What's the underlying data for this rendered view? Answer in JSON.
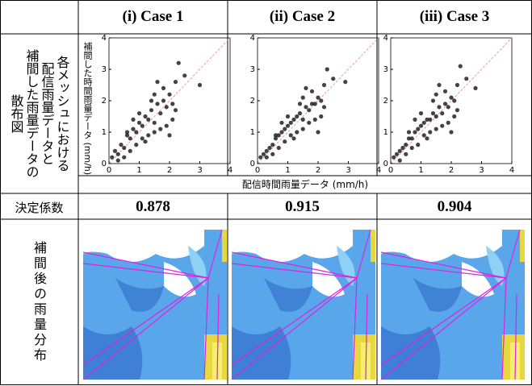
{
  "table": {
    "header": [
      "(i) Case 1",
      "(ii) Case 2",
      "(iii) Case 3"
    ],
    "scatter_row_label": [
      "各メッシュにおける",
      "配信雨量データと",
      "補間した雨量データの",
      "散布図"
    ],
    "r2_row_label": "決定係数",
    "r2_values": [
      0.878,
      0.915,
      0.904
    ],
    "map_row_label": "補間後の雨量分布",
    "x_axis_label": "配信時間雨量データ (mm/h)",
    "y_axis_label": "補間した時間雨量データ (mm/h)"
  },
  "chart_data": [
    {
      "type": "scatter",
      "color": "#222222",
      "xlim": [
        0,
        4
      ],
      "ylim": [
        0,
        4
      ],
      "xticks": [
        0,
        1,
        2,
        3,
        4
      ],
      "yticks": [
        0,
        1,
        2,
        3,
        4
      ],
      "x": [
        0.1,
        0.2,
        0.3,
        0.4,
        0.5,
        0.6,
        0.7,
        0.8,
        0.9,
        1.0,
        1.1,
        1.2,
        1.3,
        1.4,
        1.5,
        1.6,
        1.7,
        1.8,
        1.9,
        2.0,
        2.1,
        2.2,
        0.3,
        0.5,
        0.7,
        0.9,
        1.1,
        1.3,
        1.5,
        1.7,
        1.9,
        2.1,
        0.6,
        1.0,
        1.4,
        1.8,
        2.2,
        2.3,
        1.2,
        1.6,
        2.0,
        0.8,
        1.5,
        2.5,
        3.0
      ],
      "y": [
        0.2,
        0.4,
        0.3,
        0.6,
        0.5,
        0.9,
        0.8,
        1.1,
        1.0,
        1.3,
        1.2,
        1.5,
        1.4,
        1.7,
        1.3,
        1.9,
        1.6,
        2.0,
        1.8,
        2.2,
        1.9,
        1.7,
        0.1,
        0.2,
        0.4,
        0.6,
        0.8,
        0.9,
        1.0,
        1.1,
        1.2,
        1.4,
        1.0,
        1.6,
        2.0,
        2.4,
        2.6,
        3.2,
        0.7,
        2.6,
        0.9,
        1.4,
        2.2,
        2.8,
        2.5
      ]
    },
    {
      "type": "scatter",
      "color": "#222222",
      "xlim": [
        0,
        4
      ],
      "ylim": [
        0,
        4
      ],
      "xticks": [
        0,
        1,
        2,
        3,
        4
      ],
      "yticks": [
        0,
        1,
        2,
        3,
        4
      ],
      "x": [
        0.1,
        0.2,
        0.3,
        0.4,
        0.5,
        0.6,
        0.7,
        0.8,
        0.9,
        1.0,
        1.1,
        1.2,
        1.3,
        1.4,
        1.5,
        1.6,
        1.7,
        1.8,
        1.9,
        2.0,
        2.1,
        2.2,
        0.3,
        0.5,
        0.7,
        0.9,
        1.1,
        1.3,
        1.5,
        1.7,
        1.9,
        2.1,
        0.6,
        1.0,
        1.4,
        1.8,
        2.2,
        2.3,
        1.2,
        1.6,
        2.0,
        0.8,
        1.5,
        2.5,
        2.9
      ],
      "y": [
        0.2,
        0.3,
        0.4,
        0.5,
        0.6,
        0.8,
        0.9,
        1.0,
        1.1,
        1.2,
        1.3,
        1.4,
        1.5,
        1.6,
        1.4,
        1.8,
        1.7,
        1.9,
        1.9,
        2.1,
        2.0,
        1.8,
        0.2,
        0.3,
        0.5,
        0.7,
        0.9,
        1.0,
        1.1,
        1.3,
        1.4,
        1.5,
        0.9,
        1.5,
        1.9,
        2.3,
        2.5,
        3.0,
        0.8,
        2.4,
        1.0,
        1.3,
        2.1,
        2.7,
        2.6
      ]
    },
    {
      "type": "scatter",
      "color": "#222222",
      "xlim": [
        0,
        4
      ],
      "ylim": [
        0,
        4
      ],
      "xticks": [
        0,
        1,
        2,
        3,
        4
      ],
      "yticks": [
        0,
        1,
        2,
        3,
        4
      ],
      "x": [
        0.1,
        0.2,
        0.3,
        0.4,
        0.5,
        0.6,
        0.7,
        0.8,
        0.9,
        1.0,
        1.1,
        1.2,
        1.3,
        1.4,
        1.5,
        1.6,
        1.7,
        1.8,
        1.9,
        2.0,
        2.1,
        2.2,
        0.3,
        0.5,
        0.7,
        0.9,
        1.1,
        1.3,
        1.5,
        1.7,
        1.9,
        2.1,
        0.6,
        1.0,
        1.4,
        1.8,
        2.2,
        2.3,
        1.2,
        1.6,
        2.0,
        0.8,
        1.5,
        2.5,
        2.8
      ],
      "y": [
        0.2,
        0.3,
        0.4,
        0.5,
        0.6,
        0.8,
        0.8,
        1.0,
        1.1,
        1.2,
        1.3,
        1.4,
        1.4,
        1.6,
        1.5,
        1.8,
        1.6,
        1.9,
        1.8,
        2.1,
        2.0,
        1.7,
        0.1,
        0.3,
        0.5,
        0.6,
        0.9,
        1.0,
        1.1,
        1.2,
        1.3,
        1.5,
        1.0,
        1.6,
        2.0,
        2.3,
        2.5,
        3.1,
        0.8,
        2.5,
        1.0,
        1.4,
        2.2,
        2.7,
        2.4
      ]
    }
  ]
}
